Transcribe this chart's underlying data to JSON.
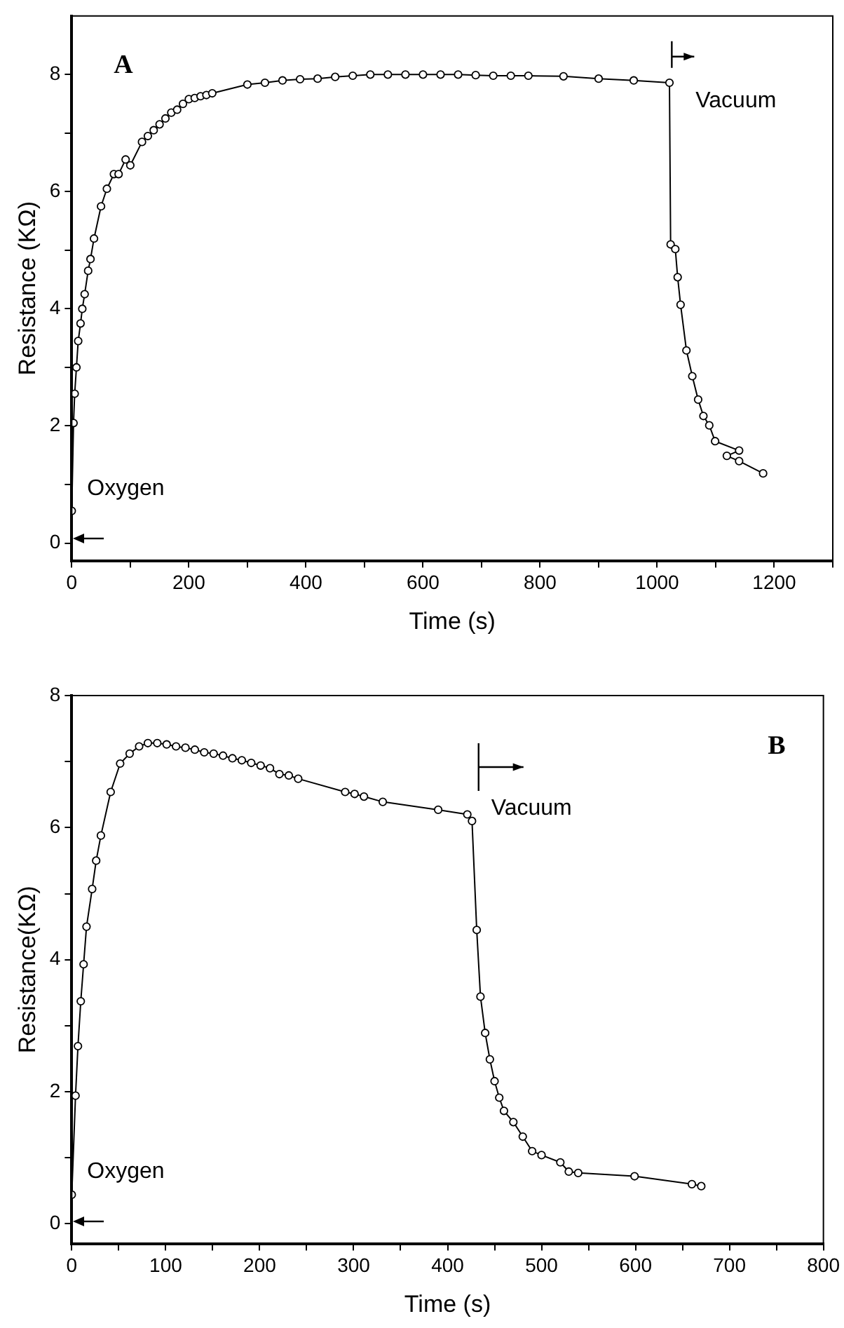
{
  "chart_data": [
    {
      "type": "line",
      "title": "A",
      "xlabel": "Time (s)",
      "ylabel": "Resistance (KΩ)",
      "marker": "circle",
      "line_style": "solid",
      "grid": false,
      "legend": false,
      "xlim": [
        0,
        1300
      ],
      "ylim": [
        -0.3,
        9
      ],
      "xticks": [
        0,
        {
          "value": 100,
          "label": null
        },
        200,
        {
          "value": 300,
          "label": null
        },
        400,
        {
          "value": 500,
          "label": null
        },
        600,
        {
          "value": 700,
          "label": null
        },
        800,
        {
          "value": 900,
          "label": null
        },
        1000,
        {
          "value": 1100,
          "label": null
        },
        1200,
        {
          "value": 1300,
          "label": null
        }
      ],
      "yticks": [
        0,
        {
          "value": 1,
          "label": null
        },
        2,
        {
          "value": 3,
          "label": null
        },
        4,
        {
          "value": 5,
          "label": null
        },
        6,
        {
          "value": 7,
          "label": null
        },
        8
      ],
      "annotations": [
        "Oxygen"
      ],
      "ref_lines": [
        {
          "axis": "x",
          "value": 1025,
          "label": "Vacuum"
        }
      ],
      "series": [
        {
          "color": "#000000",
          "x": [
            0,
            3,
            5,
            8,
            11,
            15,
            18,
            22,
            28,
            32,
            38,
            50,
            60,
            72,
            80,
            92,
            100,
            120,
            130,
            140,
            150,
            160,
            170,
            180,
            190,
            200,
            210,
            220,
            230,
            240,
            300,
            330,
            360,
            390,
            420,
            450,
            480,
            510,
            540,
            570,
            600,
            630,
            660,
            690,
            720,
            750,
            780,
            840,
            900,
            960,
            1021,
            1023,
            1031,
            1035,
            1040,
            1050,
            1060,
            1070,
            1079,
            1089,
            1099,
            1140,
            1119,
            1140,
            1181
          ],
          "values": [
            0.55,
            2.05,
            2.55,
            3.0,
            3.45,
            3.75,
            4.0,
            4.25,
            4.65,
            4.85,
            5.2,
            5.75,
            6.05,
            6.3,
            6.3,
            6.55,
            6.45,
            6.85,
            6.95,
            7.05,
            7.15,
            7.25,
            7.35,
            7.4,
            7.5,
            7.58,
            7.6,
            7.63,
            7.65,
            7.68,
            7.83,
            7.86,
            7.9,
            7.92,
            7.93,
            7.96,
            7.98,
            8.0,
            8.0,
            8.0,
            8.0,
            8.0,
            8.0,
            7.99,
            7.98,
            7.98,
            7.98,
            7.97,
            7.93,
            7.9,
            7.86,
            5.1,
            5.02,
            4.54,
            4.07,
            3.29,
            2.85,
            2.45,
            2.17,
            2.01,
            1.74,
            1.58,
            1.49,
            1.4,
            1.19
          ]
        }
      ]
    },
    {
      "type": "line",
      "title": "B",
      "xlabel": "Time (s)",
      "ylabel": "Resistance(KΩ)",
      "marker": "circle",
      "line_style": "solid",
      "grid": false,
      "legend": false,
      "xlim": [
        0,
        800
      ],
      "ylim": [
        -0.3,
        8
      ],
      "xticks": [
        0,
        {
          "value": 50,
          "label": null
        },
        100,
        {
          "value": 150,
          "label": null
        },
        200,
        {
          "value": 250,
          "label": null
        },
        300,
        {
          "value": 350,
          "label": null
        },
        400,
        {
          "value": 450,
          "label": null
        },
        500,
        {
          "value": 550,
          "label": null
        },
        600,
        {
          "value": 650,
          "label": null
        },
        700,
        {
          "value": 750,
          "label": null
        },
        800
      ],
      "yticks": [
        0,
        {
          "value": 1,
          "label": null
        },
        2,
        {
          "value": 3,
          "label": null
        },
        4,
        {
          "value": 5,
          "label": null
        },
        6,
        {
          "value": 7,
          "label": null
        },
        8
      ],
      "annotations": [
        "Oxygen"
      ],
      "ref_lines": [
        {
          "axis": "x",
          "value": 433,
          "label": "Vacuum"
        }
      ],
      "series": [
        {
          "color": "#000000",
          "x": [
            0,
            4,
            6.6,
            9.6,
            12.6,
            15.7,
            21.7,
            26,
            31,
            41.4,
            51.5,
            61.6,
            71.7,
            81,
            91,
            101,
            111,
            121,
            131,
            141,
            151,
            161,
            171,
            181,
            191,
            201,
            211,
            221,
            231,
            241,
            291,
            301,
            311,
            331,
            390,
            421,
            426,
            431,
            435,
            440,
            445,
            450,
            455,
            460,
            470,
            480,
            490,
            500,
            520,
            529,
            539,
            599,
            660,
            670
          ],
          "values": [
            0.44,
            1.94,
            2.69,
            3.37,
            3.93,
            4.5,
            5.07,
            5.5,
            5.88,
            6.54,
            6.97,
            7.12,
            7.23,
            7.28,
            7.28,
            7.26,
            7.23,
            7.21,
            7.18,
            7.14,
            7.12,
            7.09,
            7.05,
            7.02,
            6.98,
            6.94,
            6.9,
            6.81,
            6.79,
            6.74,
            6.54,
            6.51,
            6.47,
            6.39,
            6.27,
            6.2,
            6.1,
            4.45,
            3.44,
            2.89,
            2.49,
            2.16,
            1.91,
            1.71,
            1.54,
            1.32,
            1.1,
            1.04,
            0.93,
            0.79,
            0.77,
            0.72,
            0.6,
            0.57
          ]
        }
      ]
    }
  ]
}
